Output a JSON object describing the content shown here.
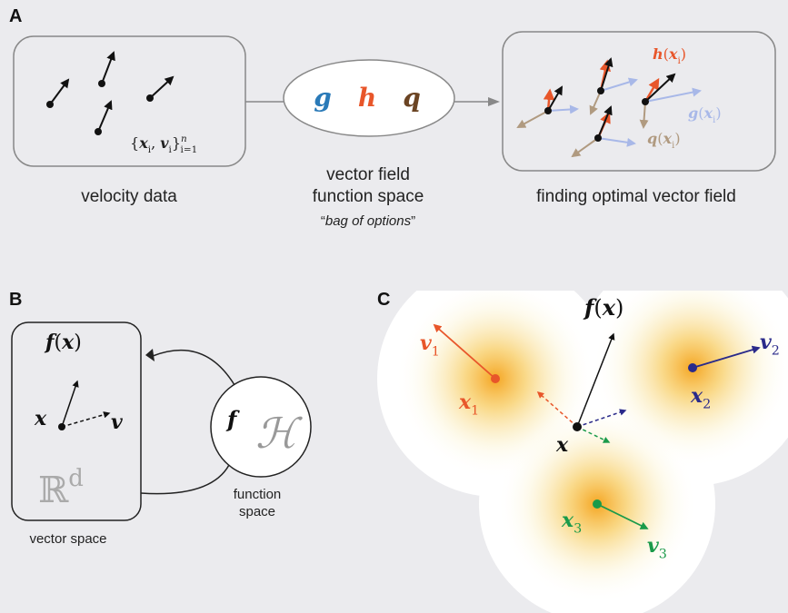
{
  "panel_a": {
    "label": "A",
    "velocity_data": "velocity data",
    "set_notation": {
      "parts": [
        {
          "text": "{",
          "style": "r"
        },
        {
          "text": "x",
          "style": "b"
        },
        {
          "text": "i",
          "style": "sub"
        },
        {
          "text": ", ",
          "style": "r"
        },
        {
          "text": "v",
          "style": "b"
        },
        {
          "text": "i",
          "style": "sub"
        },
        {
          "text": "}",
          "style": "r"
        },
        {
          "text": "n",
          "style": "supsub"
        },
        {
          "text": "i=1",
          "style": "subafter"
        }
      ]
    },
    "function_space": {
      "lines": [
        "vector field",
        "function space"
      ],
      "quote_open": "“",
      "options": "bag of options",
      "quote_close": "”",
      "functions": [
        "g",
        "h",
        "q"
      ]
    },
    "optimal": {
      "title": "finding optimal vector field",
      "h_label": {
        "parts": [
          {
            "text": "h",
            "style": "b"
          },
          {
            "text": "(",
            "style": "r"
          },
          {
            "text": "x",
            "style": "b"
          },
          {
            "text": "i",
            "style": "sub"
          },
          {
            "text": ")",
            "style": "r"
          }
        ]
      },
      "g_label": {
        "parts": [
          {
            "text": "g",
            "style": "b"
          },
          {
            "text": "(",
            "style": "r"
          },
          {
            "text": "x",
            "style": "b"
          },
          {
            "text": "i",
            "style": "sub"
          },
          {
            "text": ")",
            "style": "r"
          }
        ]
      },
      "q_label": {
        "parts": [
          {
            "text": "q",
            "style": "b"
          },
          {
            "text": "(",
            "style": "r"
          },
          {
            "text": "x",
            "style": "b"
          },
          {
            "text": "i",
            "style": "sub"
          },
          {
            "text": ")",
            "style": "r"
          }
        ]
      }
    }
  },
  "panel_b": {
    "label": "B",
    "fx": {
      "parts": [
        {
          "text": "f",
          "style": "b"
        },
        {
          "text": "(",
          "style": "r"
        },
        {
          "text": "x",
          "style": "b"
        },
        {
          "text": ")",
          "style": "r"
        }
      ]
    },
    "x": {
      "parts": [
        {
          "text": "x",
          "style": "b"
        }
      ]
    },
    "v": {
      "parts": [
        {
          "text": "v",
          "style": "b"
        }
      ]
    },
    "space": {
      "parts": [
        {
          "text": "ℝ",
          "style": "r"
        },
        {
          "text": "d",
          "style": "sup"
        }
      ]
    },
    "f": {
      "parts": [
        {
          "text": "f",
          "style": "b"
        }
      ]
    },
    "H": "ℋ",
    "function_space": [
      "function",
      "space"
    ],
    "vector_space": "vector space"
  },
  "panel_c": {
    "label": "C",
    "v1": {
      "parts": [
        {
          "text": "v",
          "style": "b"
        },
        {
          "text": "1",
          "style": "sub"
        }
      ]
    },
    "x1": {
      "parts": [
        {
          "text": "x",
          "style": "b"
        },
        {
          "text": "1",
          "style": "sub"
        }
      ]
    },
    "fx": {
      "parts": [
        {
          "text": "f",
          "style": "b"
        },
        {
          "text": "(",
          "style": "r"
        },
        {
          "text": "x",
          "style": "b"
        },
        {
          "text": ")",
          "style": "r"
        }
      ]
    },
    "x2": {
      "parts": [
        {
          "text": "x",
          "style": "b"
        },
        {
          "text": "2",
          "style": "sub"
        }
      ]
    },
    "v2": {
      "parts": [
        {
          "text": "v",
          "style": "b"
        },
        {
          "text": "2",
          "style": "sub"
        }
      ]
    },
    "x": {
      "parts": [
        {
          "text": "x",
          "style": "b"
        }
      ]
    },
    "x3": {
      "parts": [
        {
          "text": "x",
          "style": "b"
        },
        {
          "text": "3",
          "style": "sub"
        }
      ]
    },
    "v3": {
      "parts": [
        {
          "text": "v",
          "style": "b"
        },
        {
          "text": "3",
          "style": "sub"
        }
      ]
    }
  }
}
